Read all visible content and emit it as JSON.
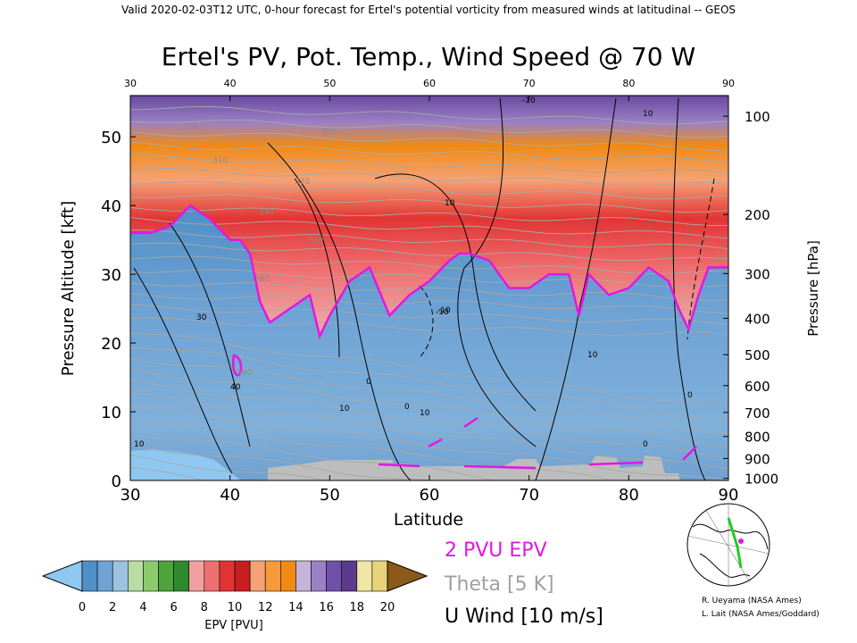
{
  "header": {
    "valid_line": "Valid 2020-02-03T12 UTC, 0-hour forecast for Ertel's potential vorticity from measured winds at latitudinal -- GEOS"
  },
  "chart_data": {
    "type": "heatmap",
    "title": "Ertel's PV, Pot. Temp., Wind Speed @ 70 W",
    "xlabel": "Latitude",
    "ylabel_left": "Pressure Altitude [kft]",
    "ylabel_right": "Pressure [hPa]",
    "xlim": [
      30,
      90
    ],
    "ylim_kft": [
      0,
      56
    ],
    "x_ticks": [
      30,
      40,
      50,
      60,
      70,
      80,
      90
    ],
    "x_ticks_top": [
      30,
      40,
      50,
      60,
      70,
      80,
      90
    ],
    "y_ticks_left": [
      0,
      10,
      20,
      30,
      40,
      50
    ],
    "y_ticks_right": [
      {
        "label": "100",
        "kft": 53.0
      },
      {
        "label": "200",
        "kft": 38.7
      },
      {
        "label": "300",
        "kft": 30.1
      },
      {
        "label": "400",
        "kft": 23.6
      },
      {
        "label": "500",
        "kft": 18.3
      },
      {
        "label": "600",
        "kft": 13.8
      },
      {
        "label": "700",
        "kft": 9.9
      },
      {
        "label": "800",
        "kft": 6.4
      },
      {
        "label": "900",
        "kft": 3.2
      },
      {
        "label": "1000",
        "kft": 0.3
      }
    ],
    "pv_2pvu_tropopause": {
      "latitude": [
        30,
        32,
        34,
        36,
        38,
        40,
        41,
        42,
        43,
        44,
        46,
        48,
        49,
        50,
        52,
        54,
        56,
        58,
        60,
        62,
        63,
        64,
        66,
        68,
        70,
        72,
        74,
        75,
        76,
        78,
        80,
        82,
        84,
        85,
        86,
        87,
        88,
        90
      ],
      "kft": [
        36,
        36,
        37,
        40,
        38,
        35,
        35,
        33,
        26,
        23,
        25,
        27,
        21,
        24,
        29,
        31,
        24,
        27,
        29,
        32,
        33,
        33,
        32,
        28,
        28,
        30,
        30,
        24,
        30,
        27,
        28,
        31,
        29,
        25,
        22,
        27,
        31,
        31
      ]
    },
    "pv_levels": [
      -2,
      0,
      1,
      2,
      3,
      4,
      5,
      6,
      7,
      8,
      9,
      10,
      11,
      12,
      13,
      14,
      15,
      16,
      17,
      18,
      19,
      20,
      21
    ],
    "colorbar": {
      "label": "EPV [PVU]",
      "ticks": [
        0,
        2,
        4,
        6,
        8,
        10,
        12,
        14,
        16,
        18,
        20
      ],
      "colors": [
        "#8ec8f0",
        "#4f8ec6",
        "#6fa3d4",
        "#9cc2e0",
        "#b9dca4",
        "#8dca6e",
        "#4da43c",
        "#2f8a2c",
        "#f0a0a0",
        "#ee6f6f",
        "#e23434",
        "#c81e1e",
        "#f4a276",
        "#f79a3c",
        "#f08a14",
        "#c6b4d8",
        "#9a80c4",
        "#7050a8",
        "#5c3a8c",
        "#efe6a6",
        "#e8d27a",
        "#8b5a1a"
      ]
    },
    "legend": [
      {
        "label": "2 PVU EPV",
        "color": "#e317e3"
      },
      {
        "label": "Theta [5 K]",
        "color": "#a0a0a0"
      },
      {
        "label": "U Wind [10 m/s]",
        "color": "#000000"
      }
    ],
    "theta_labels": [
      "300",
      "310",
      "320",
      "330",
      "340",
      "350",
      "360",
      "380"
    ],
    "wind_labels": [
      "30",
      "40",
      "-10",
      "10",
      "10",
      "10",
      "10",
      "10",
      "0",
      "-10",
      "0",
      "0",
      "-10",
      "10",
      "0"
    ]
  },
  "inset_map": {
    "description_icon": "polar-map-icon"
  },
  "credits": {
    "line1": "R. Ueyama (NASA Ames)",
    "line2": "L. Lait (NASA Ames/Goddard)"
  }
}
